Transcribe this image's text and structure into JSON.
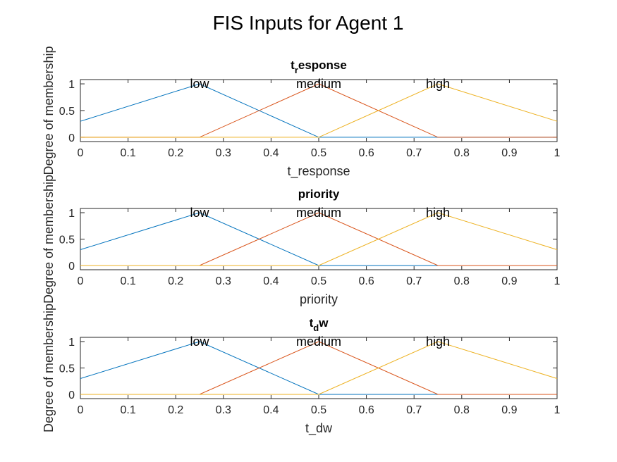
{
  "figure_title": "FIS Inputs for Agent 1",
  "chart_data": [
    {
      "type": "line",
      "title_main": "t",
      "title_sub": "r",
      "title_rest": "esponse",
      "xlabel": "t_response",
      "ylabel": "Degree of membership",
      "xlim": [
        0,
        1
      ],
      "ylim": [
        -0.08,
        1.08
      ],
      "xticks": [
        "0",
        "0.1",
        "0.2",
        "0.3",
        "0.4",
        "0.5",
        "0.6",
        "0.7",
        "0.8",
        "0.9",
        "1"
      ],
      "yticks": [
        "0",
        "0.5",
        "1"
      ],
      "grid": false,
      "series": [
        {
          "name": "low",
          "color": "#0072BD",
          "x": [
            0,
            0.25,
            0.5,
            1
          ],
          "y": [
            0.3,
            1,
            0,
            0
          ]
        },
        {
          "name": "medium",
          "color": "#D95319",
          "x": [
            0,
            0.25,
            0.5,
            0.75,
            1
          ],
          "y": [
            0,
            0,
            1,
            0,
            0
          ]
        },
        {
          "name": "high",
          "color": "#EDB120",
          "x": [
            0,
            0.5,
            0.75,
            1
          ],
          "y": [
            0,
            0,
            1,
            0.3
          ]
        }
      ]
    },
    {
      "type": "line",
      "title_main": "priority",
      "title_sub": "",
      "title_rest": "",
      "xlabel": "priority",
      "ylabel": "Degree of membership",
      "xlim": [
        0,
        1
      ],
      "ylim": [
        -0.08,
        1.08
      ],
      "xticks": [
        "0",
        "0.1",
        "0.2",
        "0.3",
        "0.4",
        "0.5",
        "0.6",
        "0.7",
        "0.8",
        "0.9",
        "1"
      ],
      "yticks": [
        "0",
        "0.5",
        "1"
      ],
      "grid": false,
      "series": [
        {
          "name": "low",
          "color": "#0072BD",
          "x": [
            0,
            0.25,
            0.5,
            1
          ],
          "y": [
            0.3,
            1,
            0,
            0
          ]
        },
        {
          "name": "medium",
          "color": "#D95319",
          "x": [
            0,
            0.25,
            0.5,
            0.75,
            1
          ],
          "y": [
            0,
            0,
            1,
            0,
            0
          ]
        },
        {
          "name": "high",
          "color": "#EDB120",
          "x": [
            0,
            0.5,
            0.75,
            1
          ],
          "y": [
            0,
            0,
            1,
            0.3
          ]
        }
      ]
    },
    {
      "type": "line",
      "title_main": "t",
      "title_sub": "d",
      "title_rest": "w",
      "xlabel": "t_dw",
      "ylabel": "Degree of membership",
      "xlim": [
        0,
        1
      ],
      "ylim": [
        -0.08,
        1.08
      ],
      "xticks": [
        "0",
        "0.1",
        "0.2",
        "0.3",
        "0.4",
        "0.5",
        "0.6",
        "0.7",
        "0.8",
        "0.9",
        "1"
      ],
      "yticks": [
        "0",
        "0.5",
        "1"
      ],
      "grid": false,
      "series": [
        {
          "name": "low",
          "color": "#0072BD",
          "x": [
            0,
            0.25,
            0.5,
            1
          ],
          "y": [
            0.3,
            1,
            0,
            0
          ]
        },
        {
          "name": "medium",
          "color": "#D95319",
          "x": [
            0,
            0.25,
            0.5,
            0.75,
            1
          ],
          "y": [
            0,
            0,
            1,
            0,
            0
          ]
        },
        {
          "name": "high",
          "color": "#EDB120",
          "x": [
            0,
            0.5,
            0.75,
            1
          ],
          "y": [
            0,
            0,
            1,
            0.3
          ]
        }
      ]
    }
  ]
}
